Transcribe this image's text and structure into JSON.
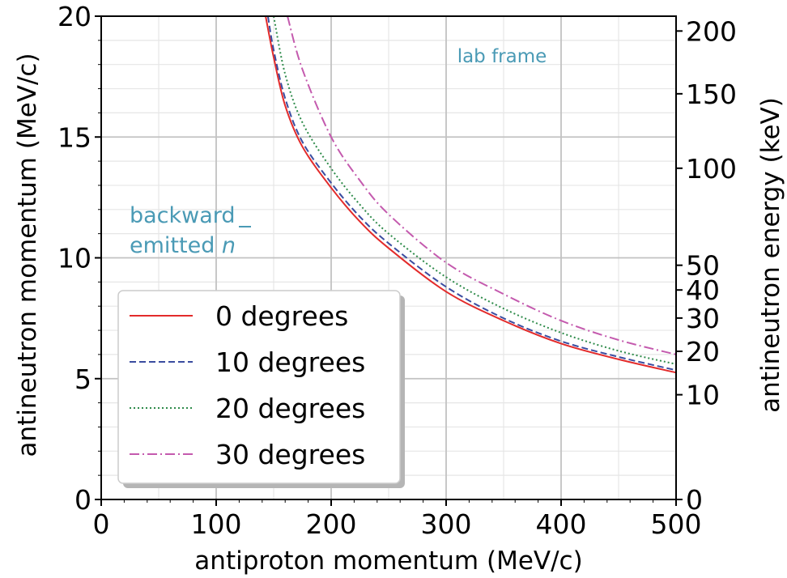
{
  "chart_data": {
    "type": "line",
    "title": "",
    "xlabel": "antiproton momentum (MeV/c)",
    "ylabel": "antineutron momentum (MeV/c)",
    "ylabel_right": "antineutron energy (keV)",
    "xlim": [
      0,
      500
    ],
    "ylim": [
      0,
      20
    ],
    "x_ticks": [
      0,
      100,
      200,
      300,
      400,
      500
    ],
    "y_ticks": [
      0,
      5,
      10,
      15,
      20
    ],
    "right_ticks": [
      {
        "label": "0",
        "energy_keV": 0
      },
      {
        "label": "10",
        "energy_keV": 10
      },
      {
        "label": "20",
        "energy_keV": 20
      },
      {
        "label": "30",
        "energy_keV": 30
      },
      {
        "label": "40",
        "energy_keV": 40
      },
      {
        "label": "50",
        "energy_keV": 50
      },
      {
        "label": "100",
        "energy_keV": 100
      },
      {
        "label": "150",
        "energy_keV": 150
      },
      {
        "label": "200",
        "energy_keV": 200
      }
    ],
    "grid": true,
    "legend_position": "bottom-left",
    "annotations": {
      "frame": "lab frame",
      "emission_line1": "backward",
      "emission_line2_text": "emitted ",
      "emission_symbol": "n"
    },
    "series": [
      {
        "name": "0 degrees",
        "color": "#e32b2b",
        "dash": "solid",
        "x": [
          143,
          150,
          160,
          175,
          200,
          225,
          250,
          300,
          350,
          400,
          450,
          500
        ],
        "y": [
          20.0,
          18.3,
          16.3,
          14.6,
          12.9,
          11.5,
          10.4,
          8.6,
          7.4,
          6.45,
          5.8,
          5.25
        ]
      },
      {
        "name": "10 degrees",
        "color": "#3a4ca0",
        "dash": "dashed",
        "x": [
          145,
          150,
          160,
          175,
          200,
          225,
          250,
          300,
          350,
          400,
          450,
          500
        ],
        "y": [
          20.0,
          18.6,
          16.6,
          14.8,
          13.1,
          11.7,
          10.6,
          8.8,
          7.5,
          6.55,
          5.9,
          5.35
        ]
      },
      {
        "name": "20 degrees",
        "color": "#2e8b4a",
        "dash": "dotted",
        "x": [
          150,
          160,
          175,
          200,
          225,
          250,
          300,
          350,
          400,
          450,
          500
        ],
        "y": [
          20.0,
          17.6,
          15.6,
          13.7,
          12.2,
          11.0,
          9.2,
          7.9,
          6.9,
          6.15,
          5.6
        ]
      },
      {
        "name": "30 degrees",
        "color": "#c45aae",
        "dash": "dashdot",
        "x": [
          162,
          175,
          200,
          225,
          250,
          300,
          350,
          400,
          450,
          500
        ],
        "y": [
          20.0,
          17.8,
          15.0,
          13.2,
          11.8,
          9.8,
          8.5,
          7.4,
          6.6,
          6.0
        ]
      }
    ]
  }
}
